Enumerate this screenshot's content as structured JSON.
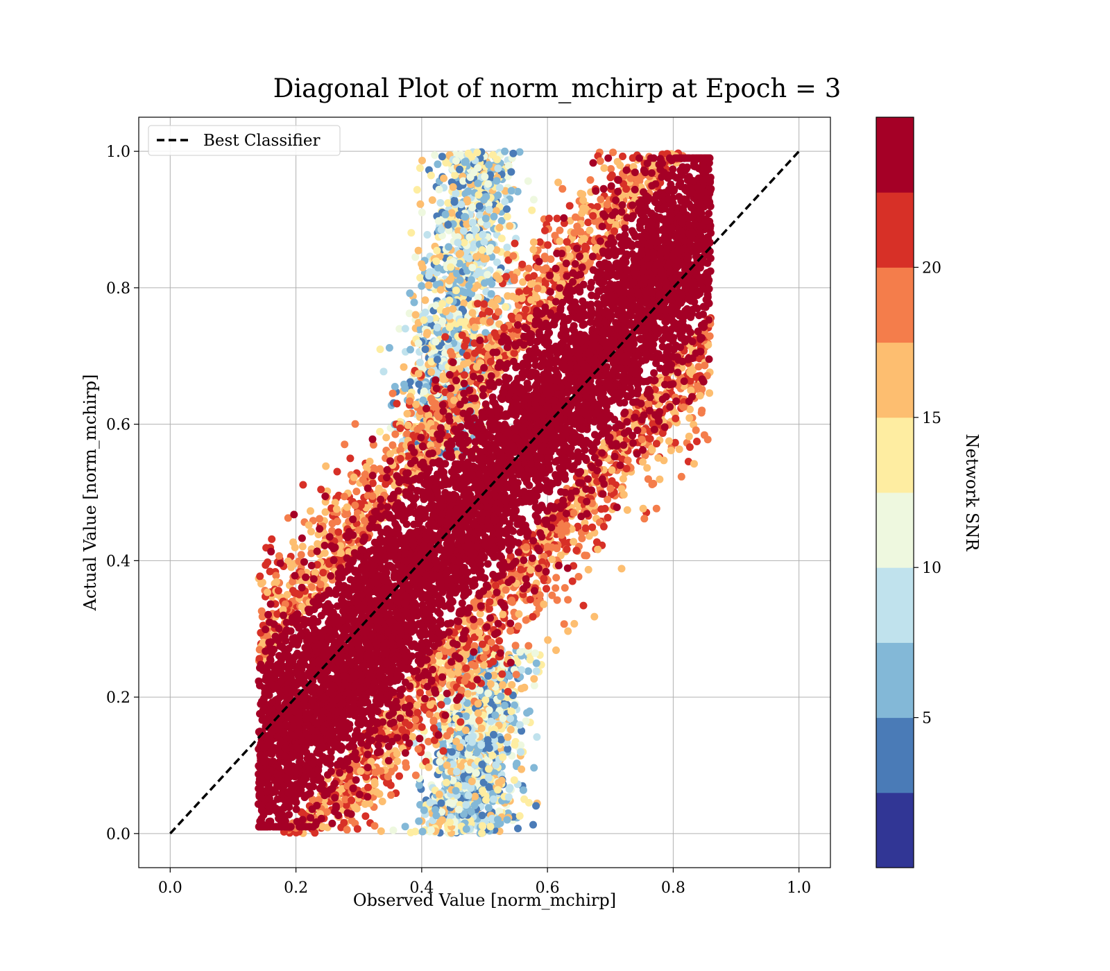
{
  "chart_data": {
    "type": "scatter",
    "title": "Diagonal Plot of norm_mchirp at Epoch = 3",
    "xlabel": "Observed Value [norm_mchirp]",
    "ylabel": "Actual Value [norm_mchirp]",
    "xlim": [
      -0.05,
      1.05
    ],
    "ylim": [
      -0.05,
      1.05
    ],
    "xticks": [
      "0.0",
      "0.2",
      "0.4",
      "0.6",
      "0.8",
      "1.0"
    ],
    "yticks": [
      "0.0",
      "0.2",
      "0.4",
      "0.6",
      "0.8",
      "1.0"
    ],
    "grid": true,
    "legend": {
      "placement": "upper-left",
      "entries": [
        {
          "label": "Best Classifier",
          "style": "black dashed line"
        }
      ]
    },
    "reference_line": {
      "name": "Best Classifier",
      "x": [
        0.0,
        1.0
      ],
      "y": [
        0.0,
        1.0
      ],
      "color": "#000000"
    },
    "color_variable": "Network SNR",
    "colorbar": {
      "label": "Network SNR",
      "range": [
        0,
        25
      ],
      "ticks": [
        "5",
        "10",
        "15",
        "20"
      ],
      "bin_colors": [
        "#313695",
        "#4a7bb7",
        "#83b8d7",
        "#c0e2ed",
        "#eef8df",
        "#feeda1",
        "#fdbe70",
        "#f47d4b",
        "#d73027",
        "#a50026"
      ]
    },
    "point_clusters": [
      {
        "description": "high SNR main band",
        "snr": 24,
        "color": "#a50026",
        "x_range": [
          0.13,
          0.87
        ],
        "y_range": [
          0.02,
          0.99
        ],
        "trend": "approximately y = 1.12x - 0.06, spread ±0.16"
      },
      {
        "description": "upper-left low SNR tail",
        "snr": 8,
        "color": "#c0e2ed",
        "x_range": [
          0.38,
          0.55
        ],
        "y_range": [
          0.55,
          1.0
        ]
      },
      {
        "description": "lower-right low SNR tail",
        "snr": 8,
        "color": "#c0e2ed",
        "x_range": [
          0.4,
          0.57
        ],
        "y_range": [
          0.0,
          0.25
        ]
      }
    ]
  }
}
